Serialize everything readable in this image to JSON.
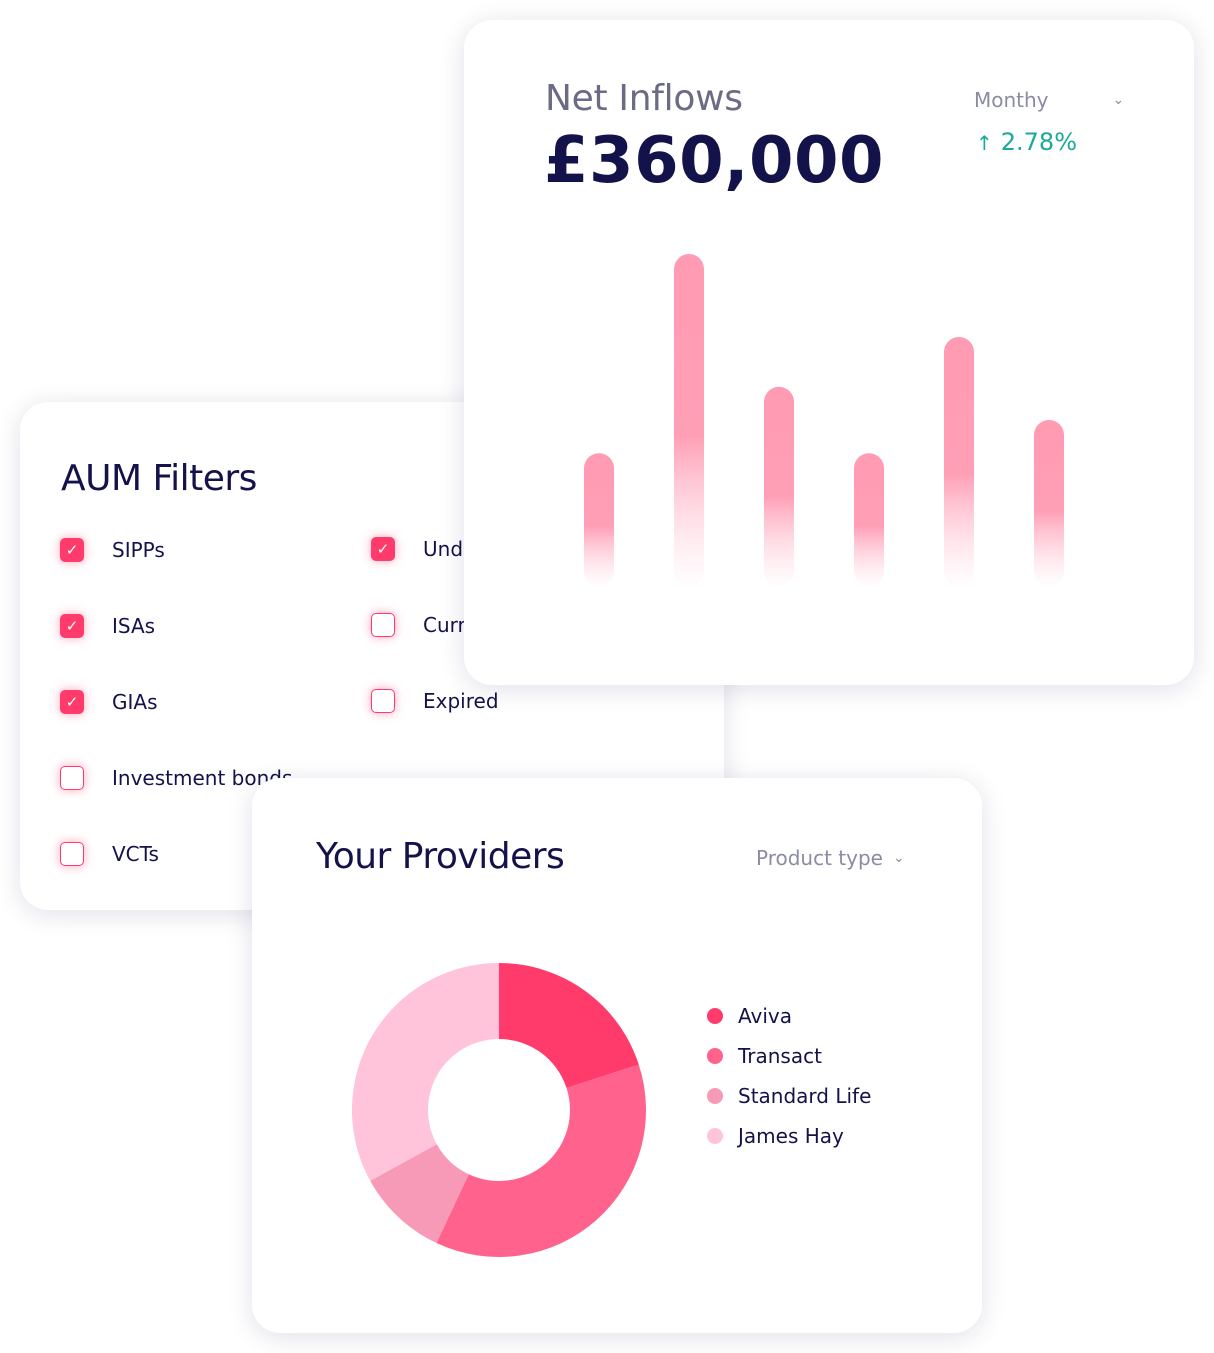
{
  "aum_filters": {
    "title": "AUM Filters",
    "items": [
      {
        "label": "SIPPs",
        "checked": true
      },
      {
        "label": "ISAs",
        "checked": true
      },
      {
        "label": "GIAs",
        "checked": true
      },
      {
        "label": "Investment bonds",
        "checked": false
      },
      {
        "label": "VCTs",
        "checked": false
      },
      {
        "label": "Und",
        "checked": true
      },
      {
        "label": "Curr",
        "checked": false
      },
      {
        "label": "Expired",
        "checked": false
      }
    ]
  },
  "net_inflows": {
    "title": "Net Inflows",
    "amount": "£360,000",
    "period_label": "Monthy",
    "change": "2.78%",
    "colors": {
      "bar": "#ff9bb3",
      "change": "#1aa99a"
    },
    "chart_data": {
      "type": "bar",
      "values": [
        40,
        100,
        60,
        40,
        75,
        50
      ],
      "ylim": [
        0,
        100
      ]
    }
  },
  "providers": {
    "title": "Your Providers",
    "filter_label": "Product type",
    "chart_data": {
      "type": "pie",
      "donut": true,
      "slices": [
        {
          "name": "Aviva",
          "value": 20,
          "color": "#ff3b6b"
        },
        {
          "name": "Transact",
          "value": 37,
          "color": "#ff628c"
        },
        {
          "name": "Standard Life",
          "value": 10,
          "color": "#f79ab8"
        },
        {
          "name": "James Hay",
          "value": 33,
          "color": "#ffc3da"
        }
      ]
    }
  }
}
